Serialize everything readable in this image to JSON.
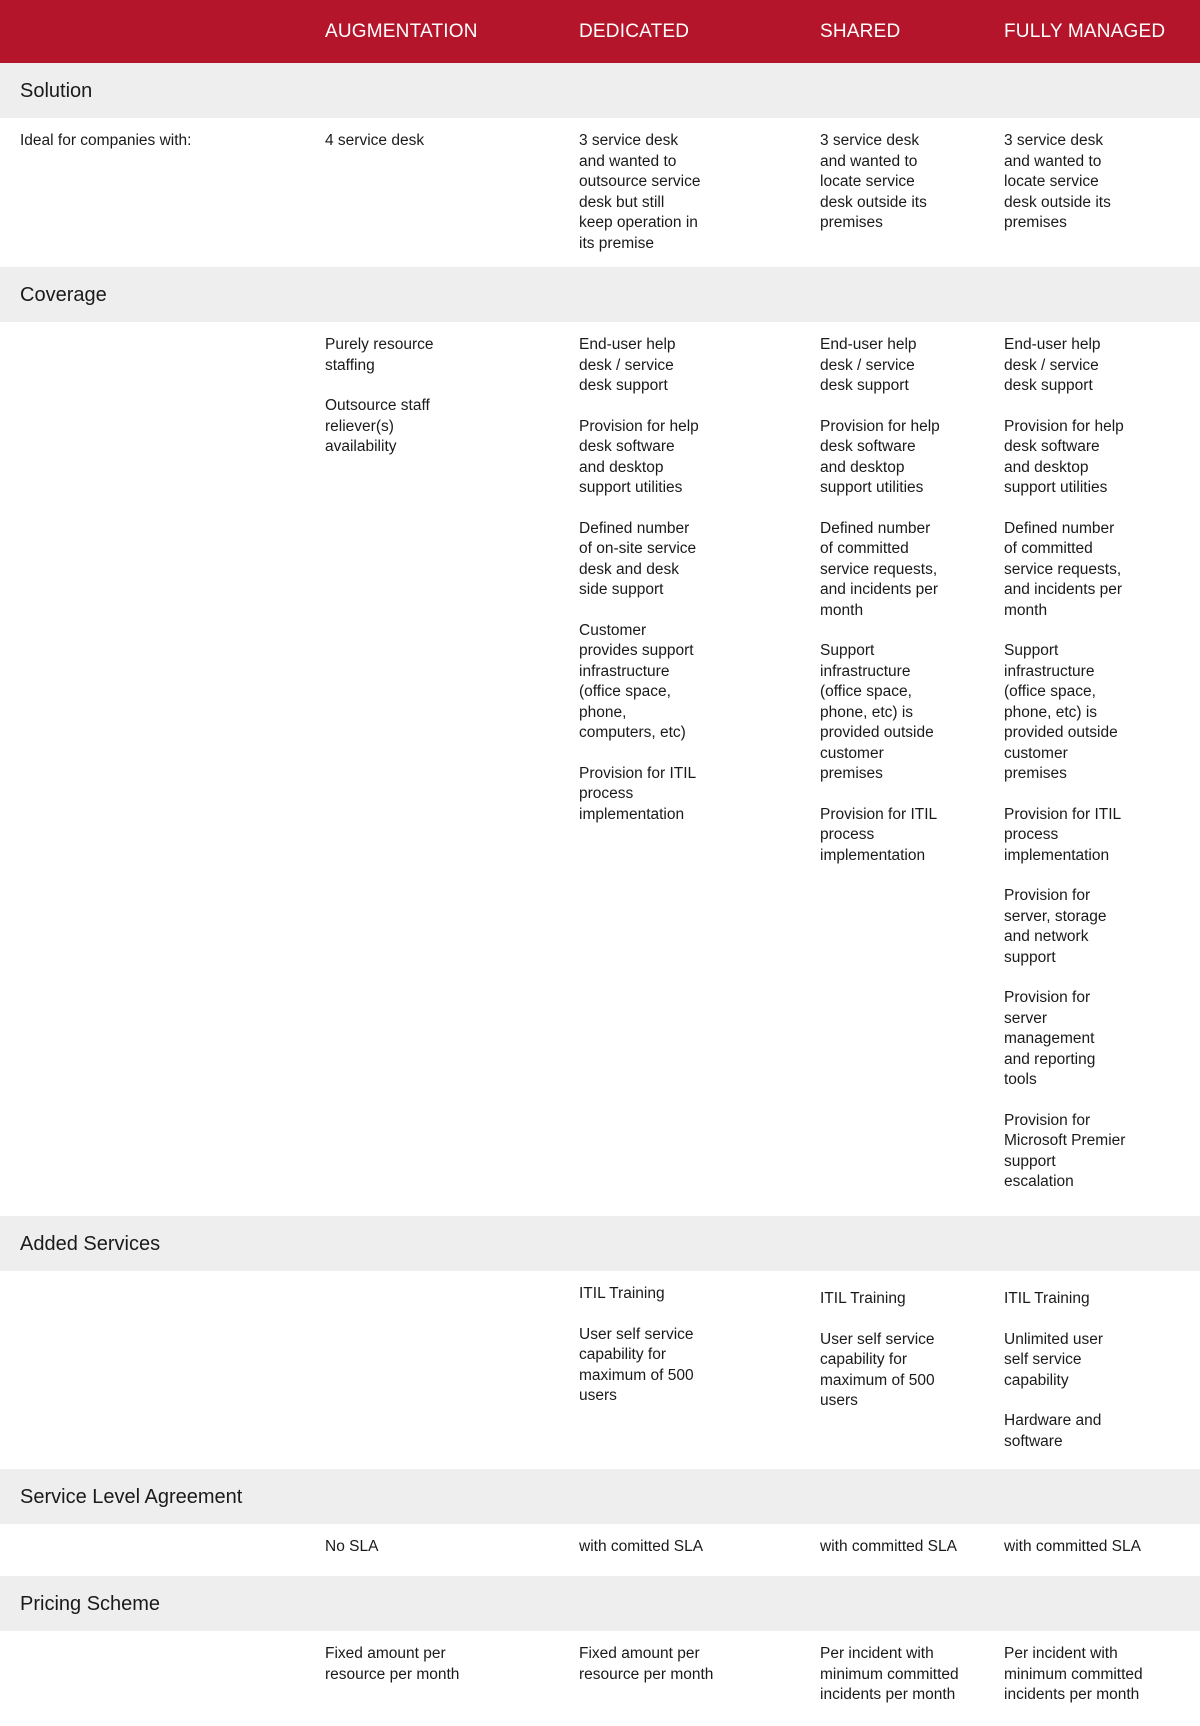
{
  "colors": {
    "header": "#b5152b",
    "band": "#eeeeee"
  },
  "columns": [
    "AUGMENTATION",
    "DEDICATED",
    "SHARED",
    "FULLY MANAGED"
  ],
  "sections": {
    "solution": {
      "title": "Solution",
      "row_label": "Ideal for companies with:",
      "augmentation": [
        "4 service desk"
      ],
      "dedicated": [
        "3 service desk\nand wanted to\noutsource service\ndesk but still\nkeep operation in\nits premise"
      ],
      "shared": [
        "3 service desk\nand wanted to\nlocate service\ndesk outside its\npremises"
      ],
      "fully_managed": [
        "3 service desk\nand wanted to\nlocate service\ndesk outside its\npremises"
      ]
    },
    "coverage": {
      "title": "Coverage",
      "augmentation": [
        "Purely resource\nstaffing",
        "Outsource staff\nreliever(s)\navailability"
      ],
      "dedicated": [
        "End-user help\ndesk / service\ndesk support",
        "Provision for help\ndesk software\nand desktop\nsupport utilities",
        "Defined  number\nof on-site service\ndesk and desk\nside support",
        "Customer\nprovides support\ninfrastructure\n(office space,\nphone,\ncomputers, etc)",
        "Provision for ITIL\nprocess\nimplementation"
      ],
      "shared": [
        "End-user help\ndesk / service\ndesk support",
        "Provision for help\ndesk software\nand desktop\nsupport utilities",
        "Defined number\nof committed\nservice requests,\nand incidents per\nmonth",
        "Support\ninfrastructure\n(office space,\nphone, etc) is\nprovided outside\ncustomer\npremises",
        "Provision for ITIL\nprocess\nimplementation"
      ],
      "fully_managed": [
        "End-user help\ndesk / service\ndesk support",
        "Provision for help\ndesk software\nand desktop\nsupport utilities",
        "Defined number\nof committed\nservice requests,\nand incidents per\nmonth",
        "Support\ninfrastructure\n(office space,\nphone, etc) is\nprovided outside\ncustomer\npremises",
        "Provision for ITIL\nprocess\nimplementation",
        "Provision for\nserver, storage\nand network\nsupport",
        "Provision for\nserver\nmanagement\nand reporting\ntools",
        "Provision for\nMicrosoft Premier\nsupport\nescalation"
      ]
    },
    "added": {
      "title": "Added Services",
      "dedicated": [
        "ITIL Training",
        "User self service\ncapability for\nmaximum of 500\nusers"
      ],
      "shared": [
        "ITIL Training",
        "User self service\ncapability for\nmaximum of 500\nusers"
      ],
      "fully_managed": [
        "ITIL Training",
        "Unlimited user\nself service\ncapability",
        "Hardware and\nsoftware"
      ]
    },
    "sla": {
      "title": "Service Level Agreement",
      "augmentation": [
        "No SLA"
      ],
      "dedicated": [
        "with comitted SLA"
      ],
      "shared": [
        "with committed SLA"
      ],
      "fully_managed": [
        "with committed SLA"
      ]
    },
    "pricing": {
      "title": "Pricing Scheme",
      "augmentation": [
        "Fixed amount per\nresource per month"
      ],
      "dedicated": [
        "Fixed amount per\nresource per month"
      ],
      "shared": [
        "Per incident with\nminimum committed\nincidents per month"
      ],
      "fully_managed": [
        "Per incident with\nminimum committed\nincidents per month"
      ]
    }
  }
}
